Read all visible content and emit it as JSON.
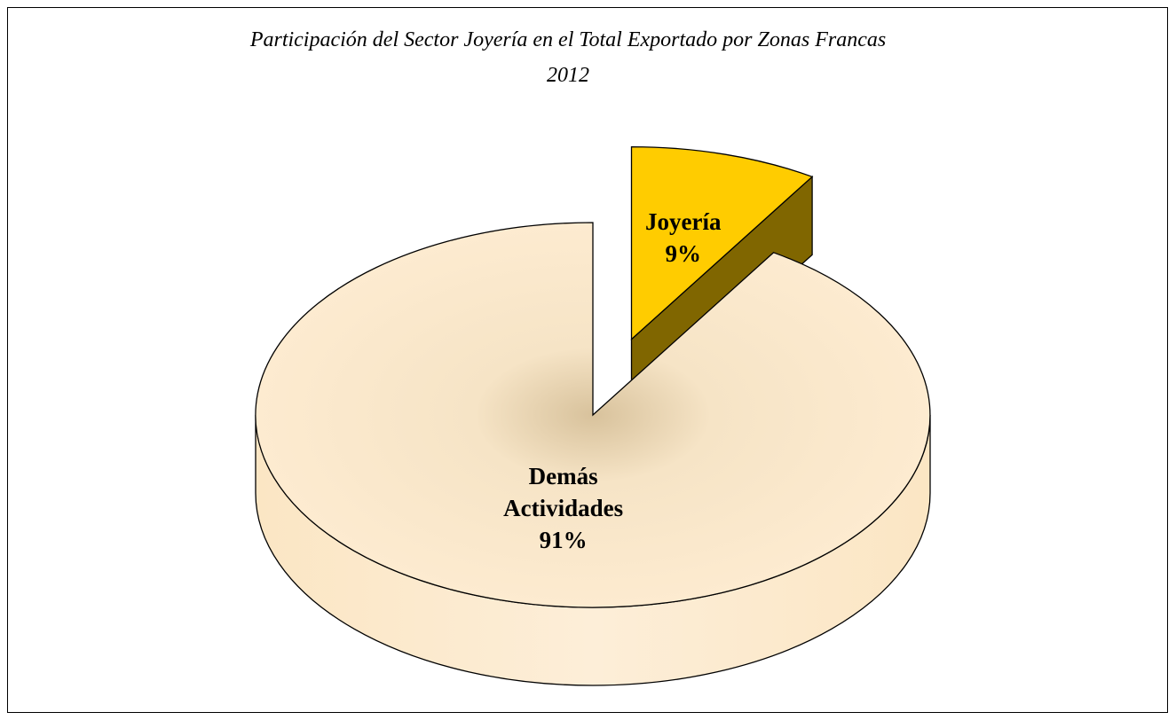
{
  "chart_data": {
    "type": "pie3d",
    "title": "Participación del Sector Joyería en el Total Exportado por Zonas Francas",
    "subtitle": "2012",
    "categories": [
      "Joyería",
      "Demás Actividades"
    ],
    "values": [
      9,
      91
    ],
    "value_labels": [
      "9%",
      "91%"
    ],
    "colors": [
      "#ffcc00",
      "#fdebd0"
    ]
  }
}
